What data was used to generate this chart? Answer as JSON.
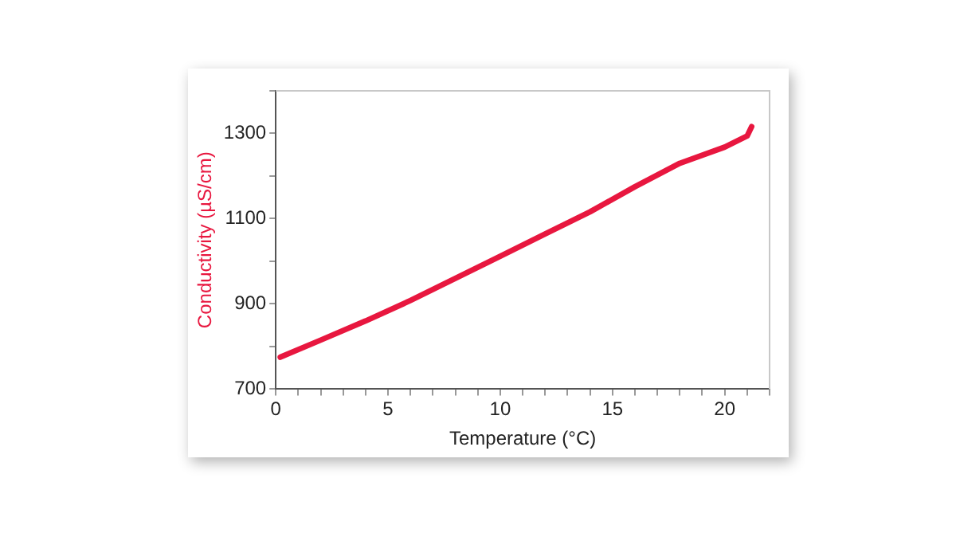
{
  "chart_data": {
    "type": "line",
    "xlabel": "Temperature (°C)",
    "ylabel": "Conductivity (µS/cm)",
    "series": [
      {
        "color": "#e8173f",
        "x": [
          0.2,
          2,
          4,
          6,
          8,
          10,
          12,
          14,
          16,
          18,
          20,
          21,
          21.2
        ],
        "values": [
          775,
          815,
          860,
          908,
          960,
          1012,
          1064,
          1116,
          1175,
          1230,
          1268,
          1294,
          1316
        ]
      }
    ],
    "xlim": [
      0,
      22
    ],
    "xticks": [
      0,
      {
        "value": 1,
        "label": null
      },
      {
        "value": 2,
        "label": null
      },
      {
        "value": 3,
        "label": null
      },
      {
        "value": 4,
        "label": null
      },
      5,
      {
        "value": 6,
        "label": null
      },
      {
        "value": 7,
        "label": null
      },
      {
        "value": 8,
        "label": null
      },
      {
        "value": 9,
        "label": null
      },
      10,
      {
        "value": 11,
        "label": null
      },
      {
        "value": 12,
        "label": null
      },
      {
        "value": 13,
        "label": null
      },
      {
        "value": 14,
        "label": null
      },
      15,
      {
        "value": 16,
        "label": null
      },
      {
        "value": 17,
        "label": null
      },
      {
        "value": 18,
        "label": null
      },
      {
        "value": 19,
        "label": null
      },
      20,
      {
        "value": 21,
        "label": null
      },
      {
        "value": 22,
        "label": null
      }
    ],
    "ylim": [
      700,
      1400
    ],
    "yticks": [
      700,
      {
        "value": 800,
        "label": null
      },
      900,
      {
        "value": 1000,
        "label": null
      },
      1100,
      {
        "value": 1200,
        "label": null
      },
      1300,
      {
        "value": 1400,
        "label": null
      }
    ],
    "grid": false,
    "legend": false,
    "marker": "none",
    "line_style": "solid"
  }
}
